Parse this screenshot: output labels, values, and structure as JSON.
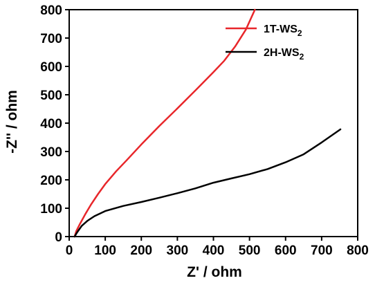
{
  "chart_data": {
    "type": "line",
    "xlabel": "Z' / ohm",
    "ylabel": "-Z'' / ohm",
    "xlim": [
      0,
      800
    ],
    "ylim": [
      0,
      800
    ],
    "xticks": [
      "0",
      "100",
      "200",
      "300",
      "400",
      "500",
      "600",
      "700",
      "800"
    ],
    "yticks": [
      "0",
      "100",
      "200",
      "300",
      "400",
      "500",
      "600",
      "700",
      "800"
    ],
    "grid": false,
    "legend_position": "top-right",
    "series": [
      {
        "name": "1T-WS",
        "name_subscript": "2",
        "color": "#e8262a",
        "points": [
          [
            15,
            0
          ],
          [
            20,
            20
          ],
          [
            30,
            45
          ],
          [
            45,
            80
          ],
          [
            60,
            112
          ],
          [
            80,
            150
          ],
          [
            100,
            185
          ],
          [
            130,
            230
          ],
          [
            160,
            270
          ],
          [
            200,
            325
          ],
          [
            250,
            390
          ],
          [
            300,
            452
          ],
          [
            350,
            515
          ],
          [
            400,
            580
          ],
          [
            430,
            620
          ],
          [
            460,
            670
          ],
          [
            490,
            730
          ],
          [
            515,
            800
          ]
        ]
      },
      {
        "name": "2H-WS",
        "name_subscript": "2",
        "color": "#000000",
        "points": [
          [
            15,
            0
          ],
          [
            22,
            15
          ],
          [
            35,
            38
          ],
          [
            50,
            55
          ],
          [
            70,
            72
          ],
          [
            100,
            90
          ],
          [
            150,
            108
          ],
          [
            200,
            122
          ],
          [
            250,
            137
          ],
          [
            300,
            153
          ],
          [
            350,
            170
          ],
          [
            400,
            190
          ],
          [
            450,
            205
          ],
          [
            500,
            220
          ],
          [
            550,
            238
          ],
          [
            600,
            262
          ],
          [
            650,
            290
          ],
          [
            700,
            332
          ],
          [
            752,
            378
          ]
        ]
      }
    ]
  }
}
